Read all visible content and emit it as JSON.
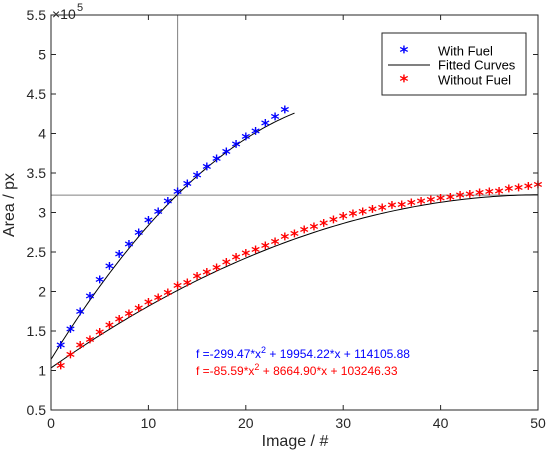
{
  "chart_data": {
    "type": "scatter",
    "xlabel": "Image / #",
    "ylabel": "Area / px",
    "y_exponent_label": "×10",
    "y_exponent_power": "5",
    "xlim": [
      0,
      50
    ],
    "ylim": [
      0.5,
      5.5
    ],
    "y_scale": 100000,
    "x_ticks": [
      "0",
      "10",
      "20",
      "30",
      "40",
      "50"
    ],
    "y_ticks": [
      "0.5",
      "1",
      "1.5",
      "2",
      "2.5",
      "3",
      "3.5",
      "4",
      "4.5",
      "5",
      "5.5"
    ],
    "grid": false,
    "legend_position": "top-right",
    "legend": [
      {
        "label": "With Fuel",
        "kind": "marker",
        "color": "#0000ff"
      },
      {
        "label": "Fitted Curves",
        "kind": "line",
        "color": "#000000"
      },
      {
        "label": "Without Fuel",
        "kind": "marker",
        "color": "#ff0000"
      }
    ],
    "reference_lines": {
      "x": 13,
      "y": 322000
    },
    "series": [
      {
        "name": "With Fuel",
        "color": "#0000ff",
        "x": [
          1,
          2,
          3,
          4,
          5,
          6,
          7,
          8,
          9,
          10,
          11,
          12,
          13,
          14,
          15,
          16,
          17,
          18,
          19,
          20,
          21,
          22,
          23,
          24
        ],
        "y": [
          128000,
          148000,
          170000,
          190000,
          211000,
          228000,
          243000,
          256000,
          270000,
          286000,
          297000,
          310000,
          322000,
          332000,
          343000,
          354000,
          364000,
          373000,
          382000,
          392000,
          399000,
          409000,
          417000,
          426000
        ],
        "fit": {
          "a": -299.47,
          "b": 19954.22,
          "c": 114105.88,
          "x_range": [
            0,
            25
          ]
        }
      },
      {
        "name": "Without Fuel",
        "color": "#ff0000",
        "x": [
          1,
          2,
          3,
          4,
          5,
          6,
          7,
          8,
          9,
          10,
          11,
          12,
          13,
          14,
          15,
          16,
          17,
          18,
          19,
          20,
          21,
          22,
          23,
          24,
          25,
          26,
          27,
          28,
          29,
          30,
          31,
          32,
          33,
          34,
          35,
          36,
          37,
          38,
          39,
          40,
          41,
          42,
          43,
          44,
          45,
          46,
          47,
          48,
          49,
          50
        ],
        "y": [
          102000,
          116000,
          128000,
          135000,
          144000,
          153000,
          161000,
          168000,
          175000,
          182000,
          188000,
          194000,
          203000,
          207000,
          215000,
          220000,
          226000,
          233000,
          239000,
          244000,
          249000,
          254000,
          259000,
          265000,
          269000,
          274000,
          278000,
          282000,
          287000,
          291000,
          294000,
          297000,
          300000,
          302000,
          305000,
          306000,
          308000,
          310000,
          312000,
          314000,
          315000,
          318000,
          319000,
          321000,
          322000,
          323000,
          326000,
          327000,
          329000,
          331000
        ],
        "fit": {
          "a": -85.59,
          "b": 8664.9,
          "c": 103246.33,
          "x_range": [
            0,
            50
          ]
        }
      }
    ],
    "annotations": [
      {
        "prefix": "f =-299.47*x",
        "sup": "2",
        "suffix": " + 19954.22*x + 114105.88",
        "color": "#0000ff"
      },
      {
        "prefix": "f =-85.59*x",
        "sup": "2",
        "suffix": " + 8664.90*x + 103246.33",
        "color": "#ff0000"
      }
    ]
  }
}
